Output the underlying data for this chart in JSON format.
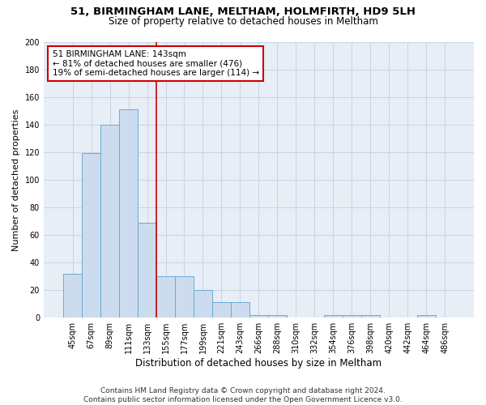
{
  "title_line1": "51, BIRMINGHAM LANE, MELTHAM, HOLMFIRTH, HD9 5LH",
  "title_line2": "Size of property relative to detached houses in Meltham",
  "xlabel": "Distribution of detached houses by size in Meltham",
  "ylabel": "Number of detached properties",
  "bar_labels": [
    "45sqm",
    "67sqm",
    "89sqm",
    "111sqm",
    "133sqm",
    "155sqm",
    "177sqm",
    "199sqm",
    "221sqm",
    "243sqm",
    "266sqm",
    "288sqm",
    "310sqm",
    "332sqm",
    "354sqm",
    "376sqm",
    "398sqm",
    "420sqm",
    "442sqm",
    "464sqm",
    "486sqm"
  ],
  "bar_values": [
    32,
    119,
    140,
    151,
    69,
    30,
    30,
    20,
    11,
    11,
    2,
    2,
    0,
    0,
    2,
    2,
    2,
    0,
    0,
    2,
    0
  ],
  "bar_color": "#ccdcee",
  "bar_edge_color": "#6aaad4",
  "vline_color": "#cc0000",
  "annotation_text": "51 BIRMINGHAM LANE: 143sqm\n← 81% of detached houses are smaller (476)\n19% of semi-detached houses are larger (114) →",
  "annotation_box_color": "#ffffff",
  "annotation_box_edge_color": "#cc0000",
  "ylim": [
    0,
    200
  ],
  "yticks": [
    0,
    20,
    40,
    60,
    80,
    100,
    120,
    140,
    160,
    180,
    200
  ],
  "grid_color": "#c8d4e4",
  "bg_color": "#e8eef6",
  "footer_text": "Contains HM Land Registry data © Crown copyright and database right 2024.\nContains public sector information licensed under the Open Government Licence v3.0.",
  "title1_fontsize": 9.5,
  "title2_fontsize": 8.5,
  "xlabel_fontsize": 8.5,
  "ylabel_fontsize": 8,
  "tick_fontsize": 7,
  "annotation_fontsize": 7.5,
  "footer_fontsize": 6.5
}
